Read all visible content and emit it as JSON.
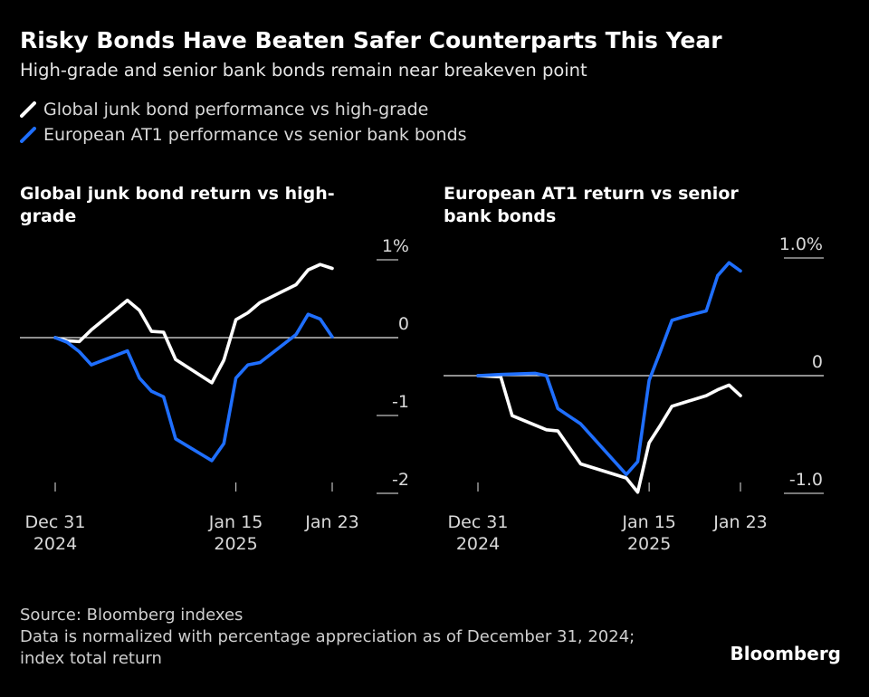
{
  "header": {
    "title": "Risky Bonds Have Beaten Safer Counterparts This Year",
    "subtitle": "High-grade and senior bank bonds remain near breakeven point"
  },
  "legend": [
    {
      "label": "Global junk bond performance vs high-grade",
      "color": "#ffffff",
      "icon": "white-line-swatch"
    },
    {
      "label": "European AT1 performance vs senior bank bonds",
      "color": "#1f6fff",
      "icon": "blue-line-swatch"
    }
  ],
  "panels": {
    "left": {
      "title_line1": "Global junk bond return vs high-",
      "title_line2": "grade"
    },
    "right": {
      "title_line1": "European AT1 return vs senior",
      "title_line2": "bank bonds"
    }
  },
  "footer": {
    "source": "Source: Bloomberg indexes",
    "note_line1": "Data is normalized with percentage appreciation as of December 31, 2024;",
    "note_line2": "index total return",
    "brand": "Bloomberg"
  },
  "chart_data": [
    {
      "type": "line",
      "title": "Global junk bond return vs high-grade",
      "x_unit": "days since Dec 31, 2024",
      "x_range": [
        0,
        23
      ],
      "x_ticks": [
        {
          "x": 0,
          "line1": "Dec 31",
          "line2": "2024"
        },
        {
          "x": 15,
          "line1": "Jan 15",
          "line2": "2025"
        },
        {
          "x": 23,
          "line1": "Jan 23",
          "line2": ""
        }
      ],
      "ylim": [
        -2,
        1
      ],
      "y_ticks": [
        {
          "value": 1,
          "label": "1%"
        },
        {
          "value": 0,
          "label": "0"
        },
        {
          "value": -1,
          "label": "-1"
        },
        {
          "value": -2,
          "label": "-2"
        }
      ],
      "zero_line": true,
      "series": [
        {
          "name": "Global junk bond performance vs high-grade",
          "color": "#ffffff",
          "x": [
            0,
            1,
            2,
            3,
            6,
            7,
            8,
            9,
            10,
            13,
            14,
            15,
            16,
            17,
            20,
            21,
            22,
            23
          ],
          "values": [
            0.0,
            -0.04,
            -0.05,
            0.1,
            0.48,
            0.35,
            0.08,
            0.07,
            -0.28,
            -0.58,
            -0.29,
            0.23,
            0.32,
            0.45,
            0.68,
            0.87,
            0.94,
            0.89
          ]
        },
        {
          "name": "European AT1 performance vs senior bank bonds",
          "color": "#1f6fff",
          "x": [
            0,
            1,
            2,
            3,
            6,
            7,
            8,
            9,
            10,
            13,
            14,
            15,
            16,
            17,
            20,
            21,
            22,
            23
          ],
          "values": [
            0.0,
            -0.06,
            -0.18,
            -0.35,
            -0.17,
            -0.52,
            -0.69,
            -0.76,
            -1.3,
            -1.58,
            -1.36,
            -0.52,
            -0.35,
            -0.32,
            0.04,
            0.3,
            0.24,
            0.01
          ]
        }
      ]
    },
    {
      "type": "line",
      "title": "European AT1 return vs senior bank bonds",
      "x_unit": "days since Dec 31, 2024",
      "x_range": [
        0,
        23
      ],
      "x_ticks": [
        {
          "x": 0,
          "line1": "Dec 31",
          "line2": "2024"
        },
        {
          "x": 15,
          "line1": "Jan 15",
          "line2": "2025"
        },
        {
          "x": 23,
          "line1": "Jan 23",
          "line2": ""
        }
      ],
      "ylim": [
        -1,
        1
      ],
      "y_ticks": [
        {
          "value": 1,
          "label": "1.0%"
        },
        {
          "value": 0,
          "label": "0"
        },
        {
          "value": -1,
          "label": "-1.0"
        }
      ],
      "zero_line": true,
      "series": [
        {
          "name": "Global junk bond performance vs high-grade",
          "color": "#ffffff",
          "x": [
            0,
            2,
            3,
            6,
            7,
            9,
            13,
            14,
            15,
            16,
            17,
            18,
            20,
            21,
            22,
            23
          ],
          "values": [
            0.0,
            -0.01,
            -0.34,
            -0.46,
            -0.47,
            -0.75,
            -0.87,
            -0.99,
            -0.57,
            -0.42,
            -0.26,
            -0.23,
            -0.17,
            -0.12,
            -0.08,
            -0.17
          ]
        },
        {
          "name": "European AT1 performance vs senior bank bonds",
          "color": "#1f6fff",
          "x": [
            0,
            2,
            5,
            6,
            7,
            9,
            13,
            14,
            15,
            16,
            17,
            18,
            20,
            21,
            22,
            23
          ],
          "values": [
            0.0,
            0.01,
            0.02,
            0.0,
            -0.28,
            -0.41,
            -0.84,
            -0.73,
            -0.04,
            0.21,
            0.47,
            0.5,
            0.55,
            0.85,
            0.96,
            0.89
          ]
        }
      ]
    }
  ]
}
